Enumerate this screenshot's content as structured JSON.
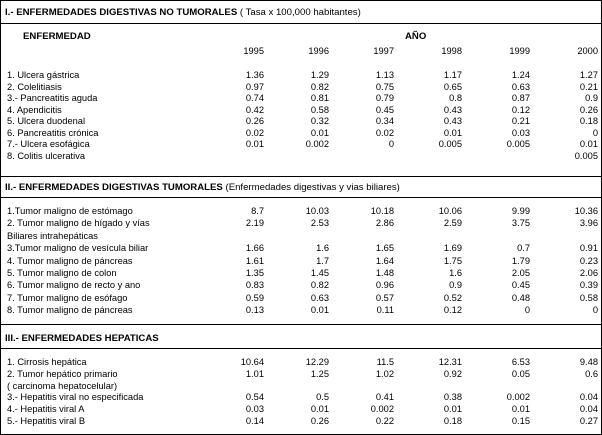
{
  "sections": {
    "s1": {
      "title": "I.- ENFERMEDADES DIGESTIVAS NO TUMORALES",
      "subtitle": "( Tasa x 100,000 habitantes)",
      "col_header": "ENFERMEDAD",
      "year_header": "AÑO",
      "years": [
        "1995",
        "1996",
        "1997",
        "1998",
        "1999",
        "2000"
      ],
      "rows": [
        {
          "label": "1. Ulcera gástrica",
          "values": [
            "1.36",
            "1.29",
            "1.13",
            "1.17",
            "1.24",
            "1.27"
          ]
        },
        {
          "label": "2. Colelitiasis",
          "values": [
            "0.97",
            "0.82",
            "0.75",
            "0.65",
            "0.63",
            "0.21"
          ]
        },
        {
          "label": "3.- Pancreatitis aguda",
          "values": [
            "0.74",
            "0.81",
            "0.79",
            "0.8",
            "0.87",
            "0.9"
          ]
        },
        {
          "label": "4. Apendicitis",
          "values": [
            "0.42",
            "0.58",
            "0.45",
            "0.43",
            "0.12",
            "0.26"
          ]
        },
        {
          "label": "5. Ulcera duodenal",
          "values": [
            "0.26",
            "0.32",
            "0.34",
            "0.43",
            "0.21",
            "0.18"
          ]
        },
        {
          "label": "6. Pancreatitis crónica",
          "values": [
            "0.02",
            "0.01",
            "0.02",
            "0.01",
            "0.03",
            "0"
          ]
        },
        {
          "label": "7.- Ulcera esofágica",
          "values": [
            "0.01",
            "0.002",
            "0",
            "0.005",
            "0.005",
            "0.01"
          ]
        },
        {
          "label": "8. Colitis ulcerativa",
          "values": [
            "",
            "",
            "",
            "",
            "",
            "0.005"
          ]
        }
      ]
    },
    "s2": {
      "title": "II.- ENFERMEDADES DIGESTIVAS TUMORALES",
      "subtitle": "(Enfermedades digestivas y vias  biliares)",
      "rows": [
        {
          "label": "1.Tumor maligno de estómago",
          "values": [
            "8.7",
            "10.03",
            "10.18",
            "10.06",
            "9.99",
            "10.36"
          ]
        },
        {
          "label": "2. Tumor maligno de hígado y vías",
          "values": [
            "2.19",
            "2.53",
            "2.86",
            "2.59",
            "3.75",
            "3.96"
          ]
        },
        {
          "label": "    Biliares intrahepáticas",
          "values": [
            "",
            "",
            "",
            "",
            "",
            ""
          ]
        },
        {
          "label": "3.Tumor maligno de vesícula biliar",
          "values": [
            "1.66",
            "1.6",
            "1.65",
            "1.69",
            "0.7",
            "0.91"
          ]
        },
        {
          "label": "4. Tumor maligno de páncreas",
          "values": [
            "1.61",
            "1.7",
            "1.64",
            "1.75",
            "1.79",
            "0.23"
          ]
        },
        {
          "label": "5. Tumor maligno de colon",
          "values": [
            "1.35",
            "1.45",
            "1.48",
            "1.6",
            "2.05",
            "2.06"
          ]
        },
        {
          "label": "6. Tumor maligno de recto y ano",
          "values": [
            "0.83",
            "0.82",
            "0.96",
            "0.9",
            "0.45",
            "0.39"
          ]
        },
        {
          "label": "7. Tumor maligno de esófago",
          "values": [
            "0.59",
            "0.63",
            "0.57",
            "0.52",
            "0.48",
            "0.58"
          ]
        },
        {
          "label": "8. Tumor maligno de páncreas",
          "values": [
            "0.13",
            "0.01",
            "0.11",
            "0.12",
            "0",
            "0"
          ]
        }
      ]
    },
    "s3": {
      "title": "III.- ENFERMEDADES HEPATICAS",
      "rows": [
        {
          "label": "1. Cirrosis hepática",
          "values": [
            "10.64",
            "12.29",
            "11.5",
            "12.31",
            "6.53",
            "9.48"
          ]
        },
        {
          "label": "2. Tumor hepático primario",
          "values": [
            "1.01",
            "1.25",
            "1.02",
            "0.92",
            "0.05",
            "0.6"
          ]
        },
        {
          "label": "  ( carcinoma hepatocelular)",
          "values": [
            "",
            "",
            "",
            "",
            "",
            ""
          ]
        },
        {
          "label": "3.- Hepatitis viral  no especificada",
          "values": [
            "0.54",
            "0.5",
            "0.41",
            "0.38",
            "0.002",
            "0.04"
          ]
        },
        {
          "label": "4.- Hepatitis viral A",
          "values": [
            "0.03",
            "0.01",
            "0.002",
            "0.01",
            "0.01",
            "0.04"
          ]
        },
        {
          "label": "5.- Hepatitis viral B",
          "values": [
            "0.14",
            "0.26",
            "0.22",
            "0.18",
            "0.15",
            "0.27"
          ]
        }
      ]
    }
  }
}
